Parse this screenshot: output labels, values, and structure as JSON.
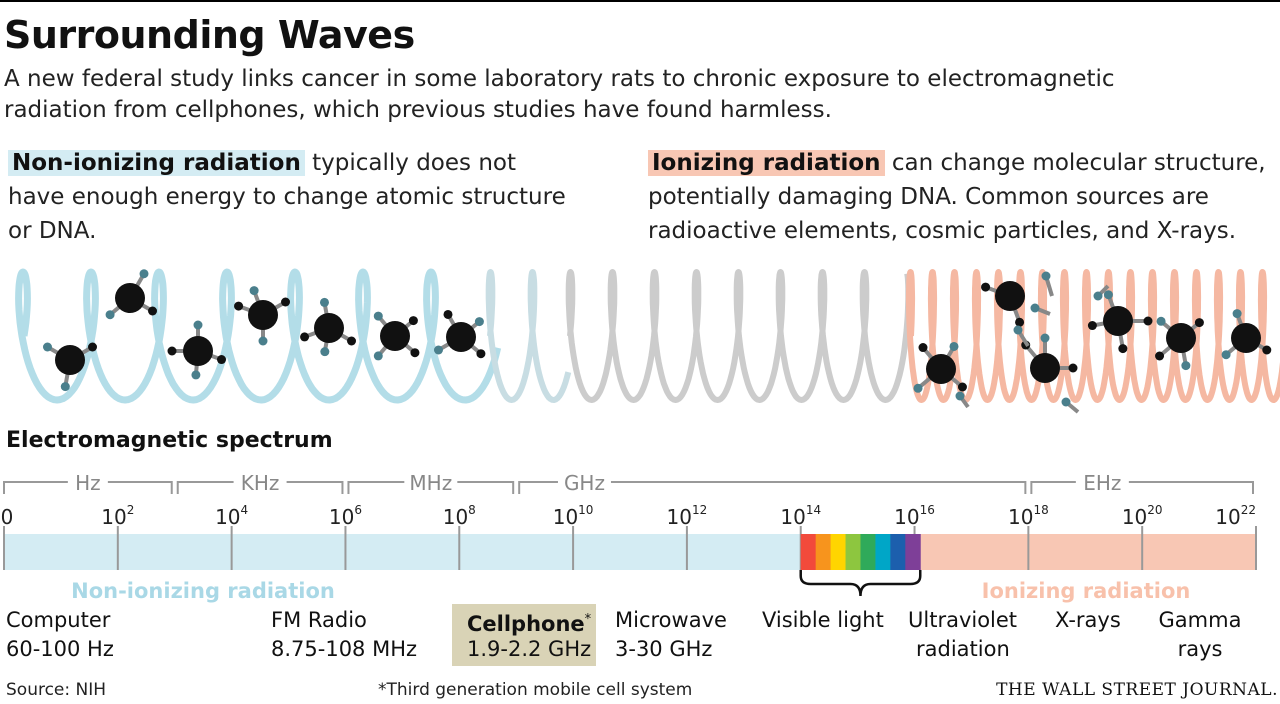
{
  "title": "Surrounding Waves",
  "subtitle": "A new federal study links cancer in some laboratory rats to chronic exposure to electromagnetic radiation from cellphones, which previous studies have found harmless.",
  "intro_left": {
    "highlight": "Non-ionizing radiation",
    "text": " typically does not have enough energy to change atomic structure or DNA."
  },
  "intro_right": {
    "highlight": "Ionizing radiation",
    "text": " can change molecular structure, potentially damaging DNA.  Common sources are radioactive elements, cosmic particles, and X-rays."
  },
  "spectrum_heading": "Electromagnetic spectrum",
  "colors": {
    "non_ionizing": "#d4ecf3",
    "ionizing": "#f8c7b4",
    "wave_blue": "#b3dde8",
    "wave_gray": "#cccccc",
    "wave_pink": "#f5b8a2",
    "cellphone_box": "#d9d3b6",
    "ionizing_label": "#f8c1ab",
    "non_ionizing_label": "#a9d8e6",
    "visible_light": [
      "#f24a3b",
      "#f7941d",
      "#ffd500",
      "#8dc63f",
      "#2faa5a",
      "#00a6c7",
      "#1c5fad",
      "#7e3f98"
    ]
  },
  "diagram": {
    "molecule_icon": "molecule-icon",
    "band_units": [
      "Hz",
      "KHz",
      "MHz",
      "GHz",
      "EHz"
    ],
    "scale_labels": [
      {
        "base": "0",
        "exp": ""
      },
      {
        "base": "10",
        "exp": "2"
      },
      {
        "base": "10",
        "exp": "4"
      },
      {
        "base": "10",
        "exp": "6"
      },
      {
        "base": "10",
        "exp": "8"
      },
      {
        "base": "10",
        "exp": "10"
      },
      {
        "base": "10",
        "exp": "12"
      },
      {
        "base": "10",
        "exp": "14"
      },
      {
        "base": "10",
        "exp": "16"
      },
      {
        "base": "10",
        "exp": "18"
      },
      {
        "base": "10",
        "exp": "20"
      },
      {
        "base": "10",
        "exp": "22"
      }
    ],
    "region_non_ionizing": "Non-ionizing radiation",
    "region_ionizing": "Ionizing radiation"
  },
  "sources": {
    "computer": {
      "name": "Computer",
      "range": "60-100 Hz"
    },
    "fm_radio": {
      "name": "FM Radio",
      "range": "8.75-108 MHz"
    },
    "cellphone": {
      "name": "Cellphone",
      "mark": "*",
      "range": "1.9-2.2 GHz"
    },
    "microwave": {
      "name": "Microwave",
      "range": "3-30 GHz"
    },
    "visible_light": {
      "name": "Visible light"
    },
    "ultraviolet": {
      "line1": "Ultraviolet",
      "line2": "radiation"
    },
    "xrays": {
      "name": "X-rays"
    },
    "gamma": {
      "line1": "Gamma",
      "line2": "rays"
    }
  },
  "footer": {
    "source": "Source: NIH",
    "footnote": "*Third generation mobile cell system",
    "credit": "THE WALL STREET JOURNAL."
  }
}
